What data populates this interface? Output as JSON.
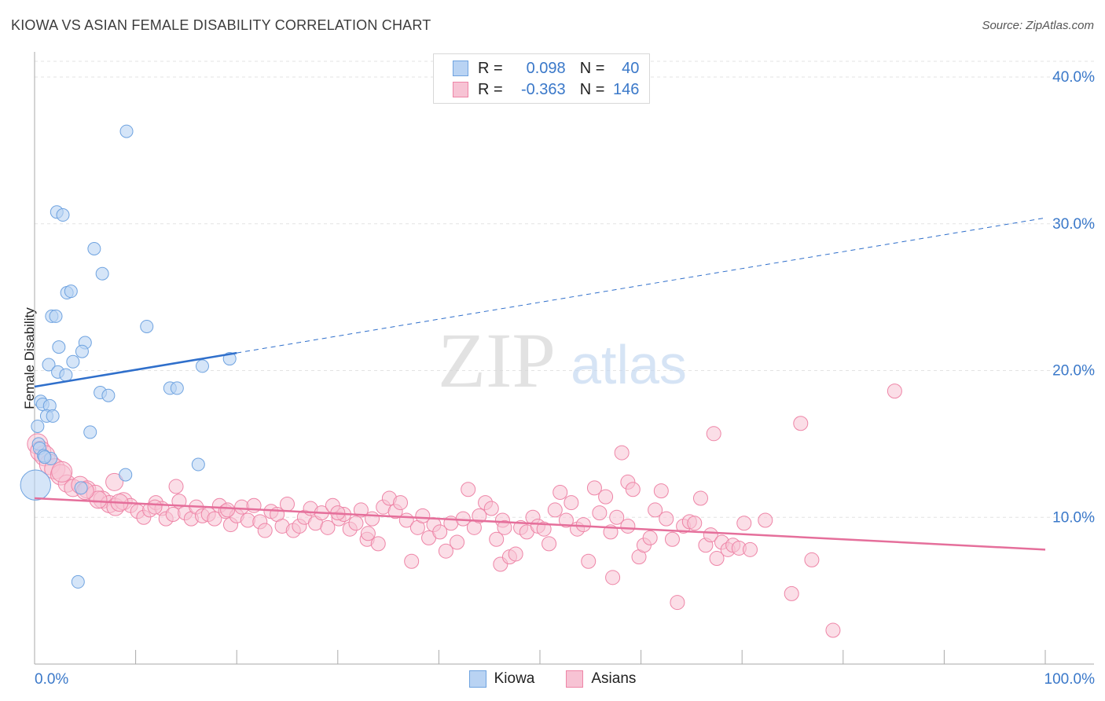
{
  "title": "KIOWA VS ASIAN FEMALE DISABILITY CORRELATION CHART",
  "source": "Source: ZipAtlas.com",
  "watermark": {
    "zip": "ZIP",
    "atlas": "atlas"
  },
  "colors": {
    "kiowa": "#6fa3e0",
    "kiowa_fill": "#b9d3f3",
    "asians": "#ee85a7",
    "asians_fill": "#f7c3d4",
    "trend_kiowa": "#2f6fcb",
    "trend_asians": "#e56f9b",
    "axis_text": "#3a78c9",
    "grid": "#e3e3e3"
  },
  "stats": {
    "kiowa": {
      "r_label": "R =",
      "r_value": "0.098",
      "n_label": "N =",
      "n_value": "40"
    },
    "asians": {
      "r_label": "R =",
      "r_value": "-0.363",
      "n_label": "N =",
      "n_value": "146"
    }
  },
  "legend": {
    "kiowa": "Kiowa",
    "asians": "Asians"
  },
  "chart_data": {
    "type": "scatter",
    "title": "KIOWA VS ASIAN FEMALE DISABILITY CORRELATION CHART",
    "xlabel": "",
    "ylabel": "Female Disability",
    "xlim": [
      0,
      100
    ],
    "ylim": [
      0,
      40
    ],
    "x_ticks": [
      "0.0%",
      "100.0%"
    ],
    "y_ticks": [
      {
        "value": 10,
        "label": "10.0%"
      },
      {
        "value": 20,
        "label": "20.0%"
      },
      {
        "value": 30,
        "label": "30.0%"
      },
      {
        "value": 40,
        "label": "40.0%"
      }
    ],
    "grid": true,
    "legend_position": "bottom",
    "series": [
      {
        "name": "Kiowa",
        "trend": {
          "x": [
            0,
            20
          ],
          "y": [
            18.9,
            21.2
          ],
          "dashed_extension": {
            "x": [
              20,
              100
            ],
            "y": [
              21.2,
              30.4
            ]
          }
        },
        "points": [
          [
            9.1,
            36.3
          ],
          [
            2.2,
            30.8
          ],
          [
            2.8,
            30.6
          ],
          [
            5.9,
            28.3
          ],
          [
            6.7,
            26.6
          ],
          [
            3.2,
            25.3
          ],
          [
            3.6,
            25.4
          ],
          [
            1.7,
            23.7
          ],
          [
            2.1,
            23.7
          ],
          [
            11.1,
            23.0
          ],
          [
            5.0,
            21.9
          ],
          [
            4.7,
            21.3
          ],
          [
            2.4,
            21.6
          ],
          [
            3.8,
            20.6
          ],
          [
            1.4,
            20.4
          ],
          [
            19.3,
            20.8
          ],
          [
            16.6,
            20.3
          ],
          [
            2.3,
            19.9
          ],
          [
            3.1,
            19.7
          ],
          [
            6.5,
            18.5
          ],
          [
            7.3,
            18.3
          ],
          [
            13.4,
            18.8
          ],
          [
            14.1,
            18.8
          ],
          [
            0.6,
            17.9
          ],
          [
            0.8,
            17.7
          ],
          [
            1.5,
            17.6
          ],
          [
            1.2,
            16.9
          ],
          [
            1.8,
            16.9
          ],
          [
            0.3,
            16.2
          ],
          [
            5.5,
            15.8
          ],
          [
            0.4,
            15.0
          ],
          [
            0.5,
            14.7
          ],
          [
            0.9,
            14.2
          ],
          [
            1.6,
            14.0
          ],
          [
            16.2,
            13.6
          ],
          [
            9.0,
            12.9
          ],
          [
            0.1,
            12.2
          ],
          [
            4.6,
            12.0
          ],
          [
            4.3,
            5.6
          ],
          [
            1.0,
            14.1
          ]
        ],
        "sizes": [
          1,
          1,
          1,
          1,
          1,
          1,
          1,
          1,
          1,
          1,
          1,
          1,
          1,
          1,
          1,
          1,
          1,
          1,
          1,
          1,
          1,
          1,
          1,
          1,
          1,
          1,
          1,
          1,
          1,
          1,
          1,
          1,
          1,
          1,
          1,
          1,
          2.4,
          1,
          1,
          1
        ]
      },
      {
        "name": "Asians",
        "trend": {
          "x": [
            0,
            100
          ],
          "y": [
            11.3,
            7.8
          ]
        },
        "points": [
          [
            0.3,
            15.0
          ],
          [
            0.6,
            14.5
          ],
          [
            1.0,
            14.2
          ],
          [
            1.5,
            13.6
          ],
          [
            2.0,
            13.3
          ],
          [
            2.6,
            12.9
          ],
          [
            3.2,
            12.3
          ],
          [
            3.8,
            12.0
          ],
          [
            4.5,
            12.2
          ],
          [
            5.2,
            11.9
          ],
          [
            6.0,
            11.6
          ],
          [
            6.7,
            11.2
          ],
          [
            7.4,
            10.9
          ],
          [
            8.0,
            10.7
          ],
          [
            7.9,
            12.4
          ],
          [
            8.8,
            11.1
          ],
          [
            9.5,
            10.8
          ],
          [
            10.2,
            10.4
          ],
          [
            10.8,
            10.0
          ],
          [
            11.4,
            10.5
          ],
          [
            12.0,
            11.0
          ],
          [
            12.6,
            10.6
          ],
          [
            13.0,
            9.9
          ],
          [
            13.7,
            10.2
          ],
          [
            14.3,
            11.1
          ],
          [
            14.0,
            12.1
          ],
          [
            14.9,
            10.3
          ],
          [
            15.5,
            9.9
          ],
          [
            16.0,
            10.7
          ],
          [
            16.6,
            10.1
          ],
          [
            17.2,
            10.2
          ],
          [
            17.8,
            9.9
          ],
          [
            18.3,
            10.8
          ],
          [
            18.9,
            10.4
          ],
          [
            19.4,
            9.5
          ],
          [
            20.0,
            10.1
          ],
          [
            20.5,
            10.7
          ],
          [
            21.1,
            9.8
          ],
          [
            21.7,
            10.8
          ],
          [
            22.3,
            9.7
          ],
          [
            22.8,
            9.1
          ],
          [
            23.4,
            10.4
          ],
          [
            24.0,
            10.2
          ],
          [
            24.5,
            9.4
          ],
          [
            25.0,
            10.9
          ],
          [
            25.6,
            9.1
          ],
          [
            26.2,
            9.4
          ],
          [
            26.7,
            10.0
          ],
          [
            27.3,
            10.6
          ],
          [
            27.8,
            9.6
          ],
          [
            28.4,
            10.3
          ],
          [
            29.0,
            9.3
          ],
          [
            29.5,
            10.8
          ],
          [
            30.1,
            9.9
          ],
          [
            30.6,
            10.2
          ],
          [
            31.2,
            9.2
          ],
          [
            31.8,
            9.6
          ],
          [
            32.3,
            10.5
          ],
          [
            32.9,
            8.5
          ],
          [
            33.4,
            9.9
          ],
          [
            33.0,
            8.9
          ],
          [
            34.0,
            8.2
          ],
          [
            34.5,
            10.7
          ],
          [
            35.1,
            11.3
          ],
          [
            35.7,
            10.4
          ],
          [
            36.2,
            11.0
          ],
          [
            36.8,
            9.8
          ],
          [
            37.3,
            7.0
          ],
          [
            37.9,
            9.3
          ],
          [
            38.4,
            10.1
          ],
          [
            39.0,
            8.6
          ],
          [
            39.5,
            9.5
          ],
          [
            40.1,
            9.0
          ],
          [
            40.7,
            7.7
          ],
          [
            41.2,
            9.6
          ],
          [
            41.8,
            8.3
          ],
          [
            42.4,
            9.9
          ],
          [
            42.9,
            11.9
          ],
          [
            43.5,
            9.3
          ],
          [
            44.0,
            10.1
          ],
          [
            44.6,
            11.0
          ],
          [
            45.2,
            10.6
          ],
          [
            45.7,
            8.5
          ],
          [
            46.3,
            9.8
          ],
          [
            46.1,
            6.8
          ],
          [
            47.0,
            7.3
          ],
          [
            47.6,
            7.5
          ],
          [
            48.1,
            9.3
          ],
          [
            48.7,
            9.0
          ],
          [
            49.3,
            10.0
          ],
          [
            49.8,
            9.4
          ],
          [
            50.4,
            9.2
          ],
          [
            50.9,
            8.2
          ],
          [
            51.5,
            10.5
          ],
          [
            52.0,
            11.7
          ],
          [
            52.6,
            9.8
          ],
          [
            53.1,
            11.0
          ],
          [
            53.7,
            9.2
          ],
          [
            54.3,
            9.5
          ],
          [
            54.8,
            7.0
          ],
          [
            55.4,
            12.0
          ],
          [
            55.9,
            10.3
          ],
          [
            56.5,
            11.4
          ],
          [
            57.0,
            9.0
          ],
          [
            57.6,
            10.0
          ],
          [
            57.2,
            5.9
          ],
          [
            58.1,
            14.4
          ],
          [
            58.7,
            12.4
          ],
          [
            59.2,
            11.9
          ],
          [
            59.8,
            7.3
          ],
          [
            60.3,
            8.1
          ],
          [
            60.9,
            8.6
          ],
          [
            61.4,
            10.5
          ],
          [
            62.0,
            11.8
          ],
          [
            62.5,
            9.9
          ],
          [
            63.1,
            8.5
          ],
          [
            63.6,
            4.2
          ],
          [
            64.2,
            9.4
          ],
          [
            64.8,
            9.7
          ],
          [
            65.3,
            9.6
          ],
          [
            65.9,
            11.3
          ],
          [
            66.4,
            8.1
          ],
          [
            66.9,
            8.8
          ],
          [
            67.5,
            7.2
          ],
          [
            68.0,
            8.3
          ],
          [
            67.2,
            15.7
          ],
          [
            68.6,
            7.8
          ],
          [
            69.1,
            8.1
          ],
          [
            69.7,
            7.9
          ],
          [
            70.2,
            9.6
          ],
          [
            70.8,
            7.8
          ],
          [
            72.3,
            9.8
          ],
          [
            74.9,
            4.8
          ],
          [
            75.8,
            16.4
          ],
          [
            76.9,
            7.1
          ],
          [
            79.0,
            2.3
          ],
          [
            85.1,
            18.6
          ],
          [
            58.7,
            9.4
          ],
          [
            46.5,
            9.3
          ],
          [
            30.0,
            10.3
          ],
          [
            19.1,
            10.5
          ],
          [
            11.9,
            10.7
          ],
          [
            8.4,
            11.0
          ],
          [
            6.3,
            11.2
          ],
          [
            5.0,
            11.8
          ],
          [
            2.7,
            13.1
          ]
        ]
      }
    ]
  }
}
